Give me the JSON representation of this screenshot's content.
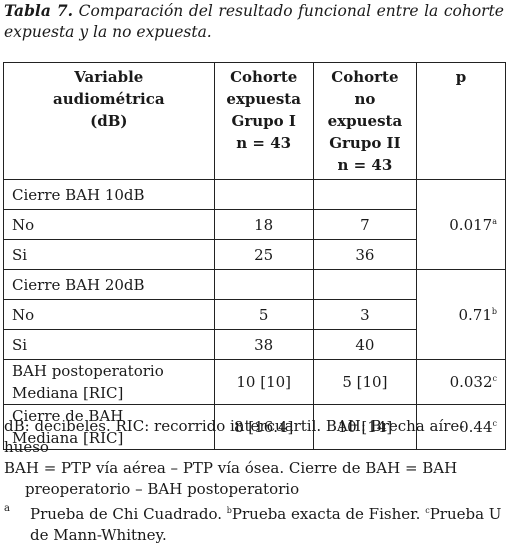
{
  "caption": {
    "label": "Tabla 7.",
    "text": "Comparación del resultado funcional entre la cohorte expuesta y la no expuesta."
  },
  "table": {
    "headers": {
      "variable": [
        "Variable",
        "audiométrica",
        "(dB)"
      ],
      "exposed": [
        "Cohorte",
        "expuesta",
        "Grupo I",
        "n = 43"
      ],
      "unexposed": [
        "Cohorte no",
        "expuesta",
        "Grupo II",
        "n = 43"
      ],
      "p": "p"
    },
    "sections": [
      {
        "title": "Cierre BAH 10dB",
        "rows": [
          {
            "label": "No",
            "g1": "18",
            "g2": "7",
            "p": "",
            "sup": ""
          },
          {
            "label": "Si",
            "g1": "25",
            "g2": "36",
            "p": "0.017",
            "sup": "a"
          }
        ]
      },
      {
        "title": "Cierre BAH 20dB",
        "rows": [
          {
            "label": "No",
            "g1": "5",
            "g2": "3",
            "p": "",
            "sup": ""
          },
          {
            "label": "Si",
            "g1": "38",
            "g2": "40",
            "p": "0.71",
            "sup": "b"
          }
        ]
      }
    ],
    "median_rows": [
      {
        "line1": "BAH postoperatorio",
        "line2": "Mediana [RIC]",
        "g1": "10 [10]",
        "g2": "5 [10]",
        "p": "0.032",
        "sup": "c"
      },
      {
        "line1": "Cierre de BAH",
        "line2": "Mediana [RIC]",
        "g1": "8 [16.4]",
        "g2": "10 [14]",
        "p": "0.44",
        "sup": "c"
      }
    ]
  },
  "notes": {
    "line1": "dB: decibeles. RIC: recorrido intercuartil. BAH: Brecha aíre-hueso",
    "line2a": "BAH = PTP vía aérea – PTP vía ósea. Cierre de BAH = BAH",
    "line2b": "preoperatorio – BAH postoperatorio",
    "fn_mark_a": "a",
    "fn_a": "Prueba de Chi Cuadrado.",
    "fn_mark_b": "b",
    "fn_b": "Prueba exacta de Fisher.",
    "fn_mark_c": "c",
    "fn_c": "Prueba U de Mann-Whitney."
  }
}
